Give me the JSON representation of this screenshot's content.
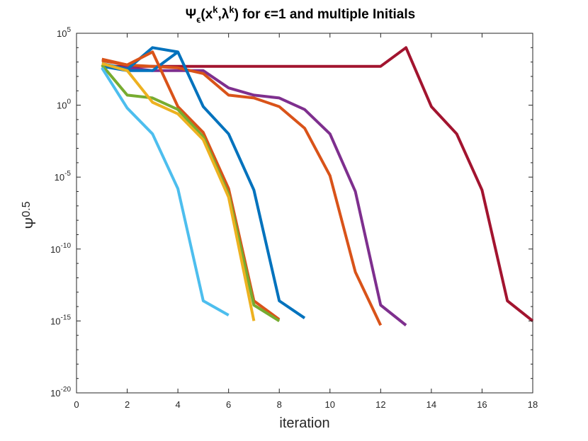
{
  "chart_data": {
    "type": "line",
    "title": {
      "psi": "Ψ",
      "eps_sub": "ϵ",
      "open": "(x",
      "k1": "k",
      "mid": ",λ",
      "k2": "k",
      "rest": ") for ϵ=1 and multiple Initials"
    },
    "xlabel": "iteration",
    "ylabel": {
      "base": "Ψ",
      "exp": "0.5"
    },
    "xlim": [
      0,
      18
    ],
    "ylim_log10": [
      -20,
      5
    ],
    "y_scale": "log",
    "x_ticks": [
      0,
      2,
      4,
      6,
      8,
      10,
      12,
      14,
      16,
      18
    ],
    "y_ticks": [
      {
        "base": "10",
        "exp": "5",
        "log": 5
      },
      {
        "base": "10",
        "exp": "0",
        "log": 0
      },
      {
        "base": "10",
        "exp": "-5",
        "log": -5
      },
      {
        "base": "10",
        "exp": "-10",
        "log": -10
      },
      {
        "base": "10",
        "exp": "-15",
        "log": -15
      },
      {
        "base": "10",
        "exp": "-20",
        "log": -20
      }
    ],
    "series": [
      {
        "name": "series-1",
        "color": "#A2142F",
        "x": [
          1,
          2,
          3,
          4,
          5,
          6,
          7,
          8,
          9,
          10,
          11,
          12,
          13,
          14,
          15,
          16,
          17,
          18
        ],
        "log10_y": [
          2.7,
          2.7,
          2.7,
          2.7,
          2.7,
          2.7,
          2.7,
          2.7,
          2.7,
          2.7,
          2.7,
          2.7,
          4.0,
          -0.1,
          -2.0,
          -5.9,
          -13.6,
          -15.0
        ]
      },
      {
        "name": "series-2",
        "color": "#7E2F8E",
        "x": [
          1,
          2,
          3,
          4,
          5,
          6,
          7,
          8,
          9,
          10,
          11,
          12,
          13
        ],
        "log10_y": [
          2.7,
          2.6,
          2.4,
          2.4,
          2.4,
          1.2,
          0.7,
          0.5,
          -0.3,
          -2.0,
          -6.0,
          -13.9,
          -15.3
        ]
      },
      {
        "name": "series-3",
        "color": "#D95319",
        "x": [
          1,
          2,
          3,
          4,
          5,
          6,
          7,
          8,
          9,
          10,
          11,
          12
        ],
        "log10_y": [
          3.1,
          2.8,
          2.7,
          2.6,
          2.2,
          0.7,
          0.5,
          -0.1,
          -1.6,
          -4.9,
          -11.6,
          -15.3
        ]
      },
      {
        "name": "series-4",
        "color": "#0072BD",
        "x": [
          1,
          2,
          3,
          4,
          5,
          6,
          7,
          8,
          9
        ],
        "log10_y": [
          2.9,
          2.5,
          4.0,
          3.7,
          -0.1,
          -2.0,
          -5.9,
          -13.6,
          -14.8
        ]
      },
      {
        "name": "series-5",
        "color": "#0072BD",
        "x": [
          1,
          2,
          3,
          4
        ],
        "log10_y": [
          2.7,
          2.4,
          2.4,
          3.7
        ]
      },
      {
        "name": "series-6",
        "color": "#D95319",
        "x": [
          1,
          2,
          3,
          4,
          5,
          6,
          7,
          8
        ],
        "log10_y": [
          3.2,
          2.8,
          3.7,
          -0.1,
          -1.9,
          -5.8,
          -13.6,
          -14.9
        ]
      },
      {
        "name": "series-7",
        "color": "#77AC30",
        "x": [
          1,
          2,
          3,
          4,
          5,
          6,
          7,
          8
        ],
        "log10_y": [
          2.8,
          0.7,
          0.5,
          -0.3,
          -2.2,
          -6.2,
          -13.9,
          -15.0
        ]
      },
      {
        "name": "series-8",
        "color": "#EDB120",
        "x": [
          1,
          2,
          3,
          4,
          5,
          6,
          7
        ],
        "log10_y": [
          2.9,
          2.4,
          0.2,
          -0.6,
          -2.4,
          -6.4,
          -15.0
        ]
      },
      {
        "name": "series-9",
        "color": "#4DBEEE",
        "x": [
          1,
          2,
          3,
          4,
          5,
          6
        ],
        "log10_y": [
          2.6,
          -0.2,
          -2.0,
          -5.8,
          -13.6,
          -14.6
        ]
      }
    ]
  }
}
